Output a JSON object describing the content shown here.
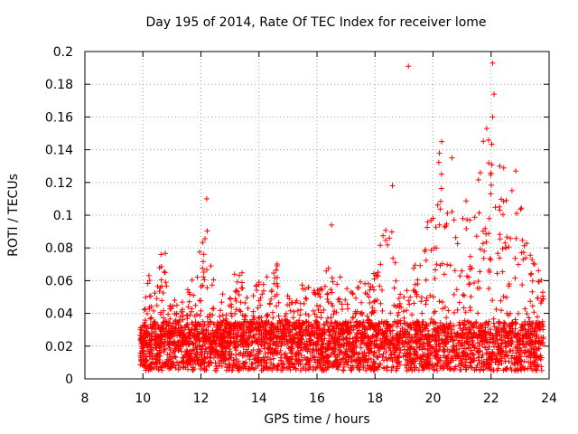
{
  "chart_data": {
    "type": "scatter",
    "title": "Day 195 of 2014, Rate Of TEC Index for receiver lome",
    "xlabel": "GPS time / hours",
    "ylabel": "ROTI / TECUs",
    "xlim": [
      8,
      24
    ],
    "ylim": [
      0,
      0.2
    ],
    "xticks": [
      "8",
      "10",
      "12",
      "14",
      "16",
      "18",
      "20",
      "22",
      "24"
    ],
    "yticks": [
      "0",
      "0.02",
      "0.04",
      "0.06",
      "0.08",
      "0.1",
      "0.12",
      "0.14",
      "0.16",
      "0.18",
      "0.2"
    ],
    "grid": true,
    "marker": "+",
    "color": "#ff0000",
    "series": [
      {
        "name": "ROTI",
        "x_start": 9.9,
        "x_end": 23.8,
        "baseline_range": [
          0.005,
          0.035
        ],
        "envelope": [
          [
            9.9,
            0.025
          ],
          [
            10.2,
            0.065
          ],
          [
            10.5,
            0.07
          ],
          [
            10.7,
            0.085
          ],
          [
            11.0,
            0.05
          ],
          [
            11.3,
            0.05
          ],
          [
            11.7,
            0.065
          ],
          [
            11.9,
            0.076
          ],
          [
            12.2,
            0.1
          ],
          [
            12.5,
            0.05
          ],
          [
            13.0,
            0.055
          ],
          [
            13.3,
            0.075
          ],
          [
            13.6,
            0.05
          ],
          [
            14.0,
            0.06
          ],
          [
            14.3,
            0.065
          ],
          [
            14.6,
            0.075
          ],
          [
            15.0,
            0.05
          ],
          [
            15.5,
            0.06
          ],
          [
            16.0,
            0.055
          ],
          [
            16.3,
            0.075
          ],
          [
            16.6,
            0.065
          ],
          [
            17.0,
            0.06
          ],
          [
            17.5,
            0.06
          ],
          [
            18.0,
            0.07
          ],
          [
            18.3,
            0.09
          ],
          [
            18.5,
            0.12
          ],
          [
            18.8,
            0.05
          ],
          [
            19.1,
            0.06
          ],
          [
            19.4,
            0.075
          ],
          [
            19.7,
            0.08
          ],
          [
            20.0,
            0.12
          ],
          [
            20.3,
            0.145
          ],
          [
            20.6,
            0.135
          ],
          [
            21.0,
            0.12
          ],
          [
            21.3,
            0.1
          ],
          [
            21.6,
            0.14
          ],
          [
            21.8,
            0.155
          ],
          [
            22.0,
            0.175
          ],
          [
            22.3,
            0.14
          ],
          [
            22.6,
            0.125
          ],
          [
            23.0,
            0.11
          ],
          [
            23.3,
            0.08
          ],
          [
            23.6,
            0.07
          ],
          [
            23.8,
            0.06
          ]
        ],
        "spikes": [
          {
            "x": 12.2,
            "y": 0.11
          },
          {
            "x": 16.5,
            "y": 0.094
          },
          {
            "x": 18.6,
            "y": 0.118
          },
          {
            "x": 19.15,
            "y": 0.191
          },
          {
            "x": 20.3,
            "y": 0.145
          },
          {
            "x": 20.65,
            "y": 0.135
          },
          {
            "x": 22.05,
            "y": 0.193
          },
          {
            "x": 22.1,
            "y": 0.174
          },
          {
            "x": 22.05,
            "y": 0.16
          },
          {
            "x": 22.85,
            "y": 0.127
          },
          {
            "x": 21.85,
            "y": 0.153
          },
          {
            "x": 22.3,
            "y": 0.13
          }
        ],
        "point_count": 3800
      }
    ]
  }
}
